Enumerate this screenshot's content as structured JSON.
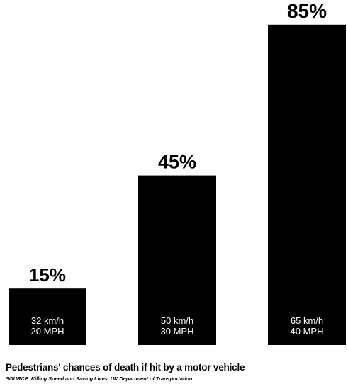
{
  "chart_data": {
    "type": "bar",
    "categories": [
      "32 km/h 20 MPH",
      "50 km/h 30 MPH",
      "65 km/h 40 MPH"
    ],
    "series": [
      {
        "values": [
          15,
          45,
          85
        ],
        "value_labels": [
          "15%",
          "45%",
          "85%"
        ],
        "speed_kmh": [
          "32 km/h",
          "50 km/h",
          "65 km/h"
        ],
        "speed_mph": [
          "20 MPH",
          "30 MPH",
          "40 MPH"
        ]
      }
    ],
    "ylim": [
      0,
      100
    ],
    "grid": false,
    "legend": "none",
    "title": "Pedestrians' chances of death if hit by a motor vehicle",
    "source": "SOURCE: Killing Speed and Saving Lives, UK Department of Transportation",
    "colors": {
      "bar": "#000000",
      "bar_text": "#ffffff",
      "background": "#ffffff"
    }
  }
}
